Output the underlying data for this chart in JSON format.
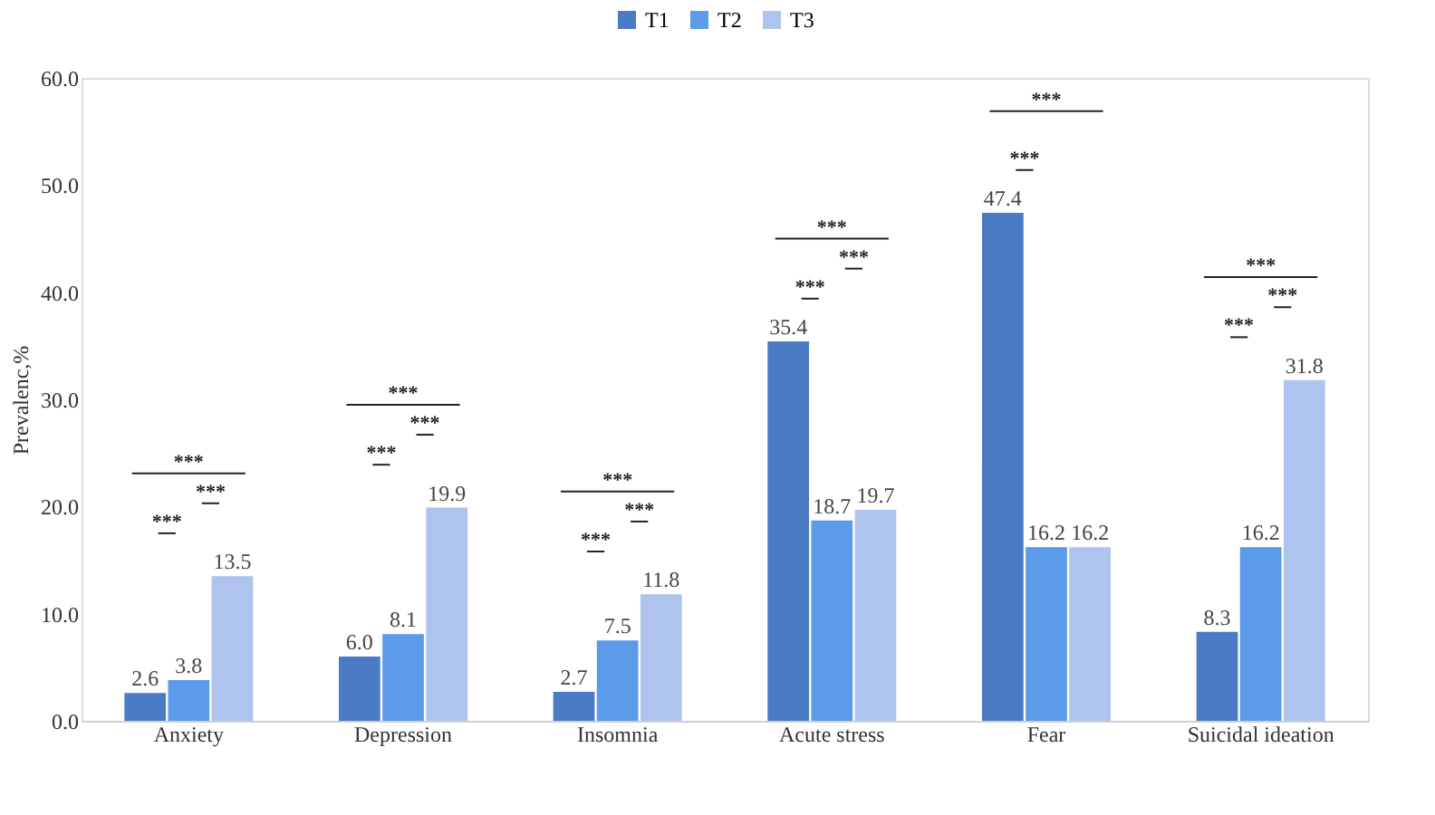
{
  "chart_data": {
    "type": "bar",
    "ylabel": "Prevalenc,%",
    "categories": [
      "Anxiety",
      "Depression",
      "Insomnia",
      "Acute stress",
      "Fear",
      "Suicidal ideation"
    ],
    "series": [
      {
        "name": "T1",
        "color": "#4a7bc4",
        "values": [
          2.6,
          6.0,
          2.7,
          35.4,
          47.4,
          8.3
        ],
        "value_labels": [
          "2.6",
          "6.0",
          "2.7",
          "35.4",
          "47.4",
          "8.3"
        ]
      },
      {
        "name": "T2",
        "color": "#5b9bea",
        "values": [
          3.8,
          8.1,
          7.5,
          18.7,
          16.2,
          16.2
        ]
      },
      {
        "name": "T3",
        "color": "#aec3ee",
        "values": [
          13.5,
          19.9,
          11.8,
          19.7,
          16.2,
          31.8
        ]
      }
    ],
    "ylim": [
      0,
      60
    ],
    "yticks": [
      {
        "value": 0,
        "label": "0.0"
      },
      {
        "value": 10,
        "label": "10.0"
      },
      {
        "value": 20,
        "label": "20.0"
      },
      {
        "value": 30,
        "label": "30.0"
      },
      {
        "value": 40,
        "label": "40.0"
      },
      {
        "value": 50,
        "label": "50.0"
      },
      {
        "value": 60,
        "label": "60.0"
      }
    ],
    "data_labels": true,
    "legend": "top",
    "grid": false,
    "annotations": [
      "***",
      "***",
      "***",
      "***",
      "***",
      "***",
      "***",
      "***",
      "***",
      "***",
      "***",
      "***",
      "***",
      "***",
      "***",
      "***",
      "***"
    ]
  }
}
